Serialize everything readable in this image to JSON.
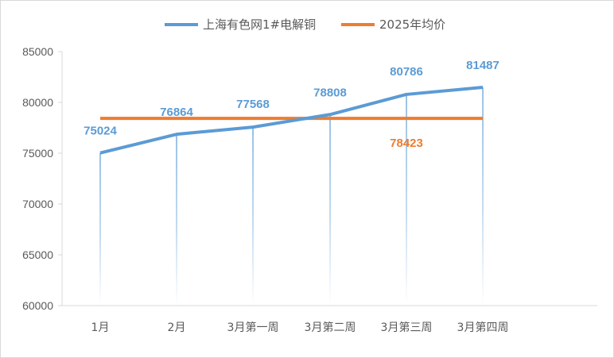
{
  "chart_data": {
    "type": "line",
    "categories": [
      "1月",
      "2月",
      "3月第一周",
      "3月第二周",
      "3月第三周",
      "3月第四周"
    ],
    "series": [
      {
        "name": "上海有色网1#电解铜",
        "values": [
          75024,
          76864,
          77568,
          78808,
          80786,
          81487
        ],
        "color": "#5b9bd5"
      },
      {
        "name": "2025年均价",
        "values": [
          78423,
          78423,
          78423,
          78423,
          78423,
          78423
        ],
        "color": "#ed7d31",
        "label": "78423"
      }
    ],
    "ylim": [
      60000,
      85000
    ],
    "yticks": [
      60000,
      65000,
      70000,
      75000,
      80000,
      85000
    ],
    "legend_position": "top",
    "grid": false,
    "drop_lines": true
  }
}
